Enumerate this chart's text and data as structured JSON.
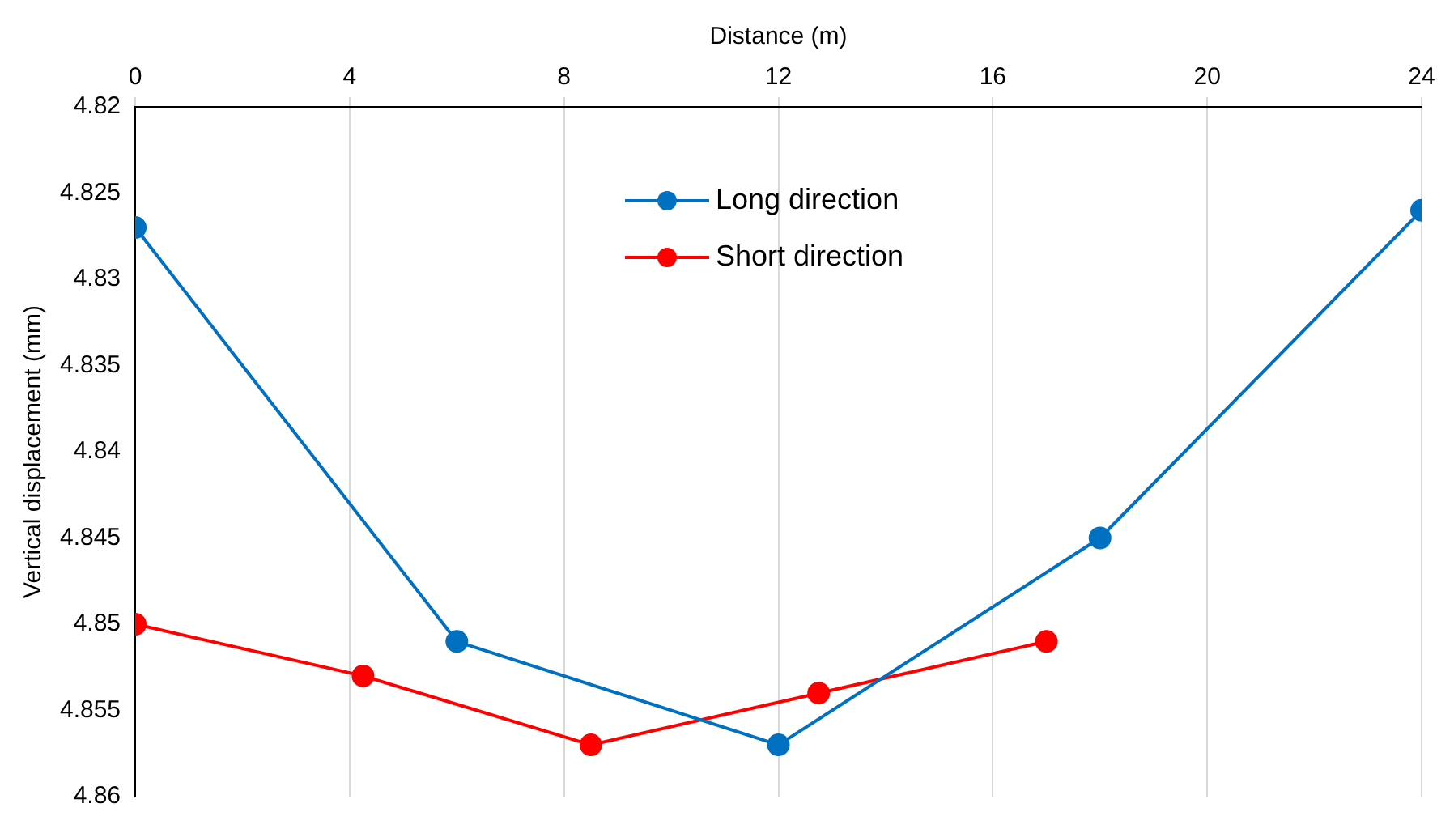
{
  "chart_data": {
    "type": "line",
    "xlabel": "Distance (m)",
    "ylabel": "Vertical displacement (mm)",
    "xlim": [
      0,
      24
    ],
    "xticks": [
      0,
      4,
      8,
      12,
      16,
      20,
      24
    ],
    "ylim": [
      4.86,
      4.82
    ],
    "yticks": [
      4.82,
      4.825,
      4.83,
      4.835,
      4.84,
      4.845,
      4.85,
      4.855,
      4.86
    ],
    "grid": "x",
    "legend": "top",
    "marker": "circle",
    "line_style": "solid",
    "series": [
      {
        "name": "Long direction",
        "color": "#0070c0",
        "x": [
          0,
          6,
          12,
          18,
          24
        ],
        "values": [
          4.827,
          4.851,
          4.857,
          4.845,
          4.826
        ]
      },
      {
        "name": "Short direction",
        "color": "#ff0000",
        "x": [
          0,
          4.25,
          8.5,
          12.75,
          17
        ],
        "values": [
          4.85,
          4.853,
          4.857,
          4.854,
          4.851
        ]
      }
    ]
  }
}
